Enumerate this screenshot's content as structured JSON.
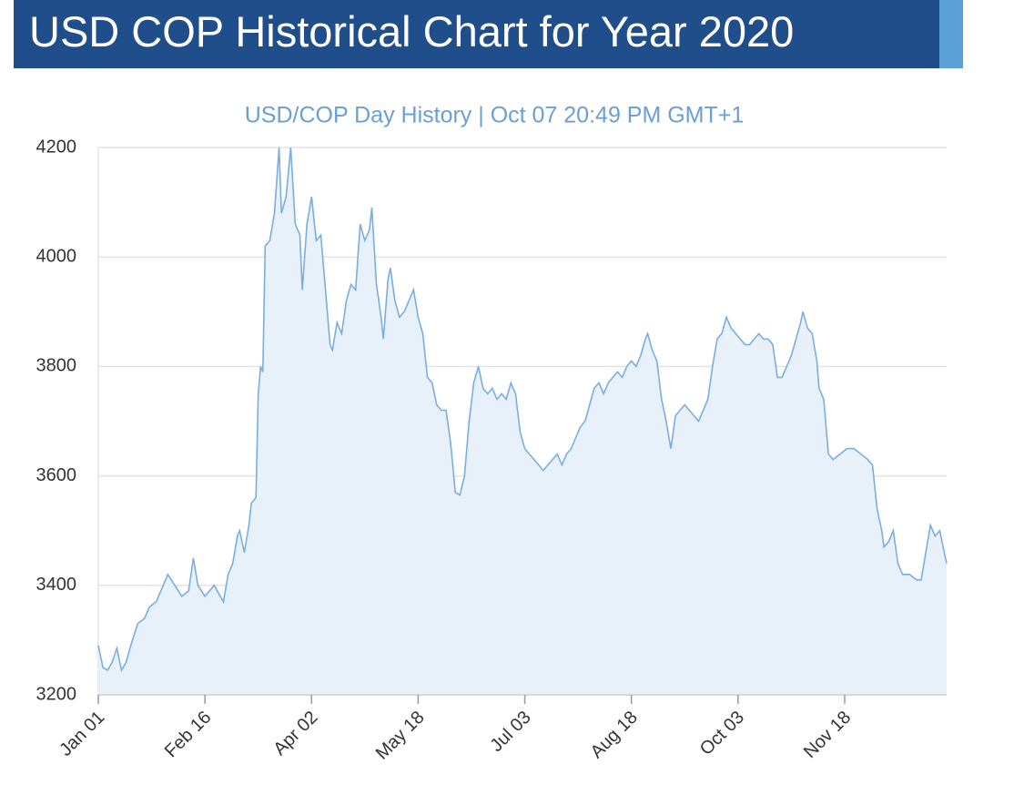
{
  "header": {
    "title": "USD COP Historical Chart for Year 2020"
  },
  "chart_data": {
    "type": "area",
    "title": "USD/COP  Day History | Oct 07 20:49 PM GMT+1",
    "x": [
      0,
      2,
      4,
      6,
      8,
      10,
      12,
      14,
      17,
      20,
      22,
      25,
      28,
      30,
      33,
      36,
      39,
      41,
      43,
      46,
      48,
      50,
      52,
      54,
      56,
      58,
      60,
      61,
      63,
      65,
      66,
      68,
      69,
      70,
      71,
      72,
      74,
      76,
      78,
      79,
      81,
      83,
      85,
      87,
      88,
      90,
      92,
      94,
      96,
      98,
      100,
      101,
      103,
      105,
      107,
      109,
      111,
      113,
      115,
      117,
      118,
      120,
      122,
      123,
      125,
      126,
      128,
      130,
      132,
      134,
      136,
      138,
      140,
      142,
      144,
      146,
      148,
      150,
      152,
      154,
      156,
      158,
      160,
      162,
      164,
      166,
      168,
      170,
      172,
      174,
      176,
      178,
      180,
      182,
      184,
      186,
      188,
      190,
      192,
      194,
      196,
      198,
      200,
      202,
      204,
      206,
      208,
      210,
      212,
      214,
      216,
      218,
      220,
      222,
      224,
      226,
      228,
      230,
      232,
      234,
      236,
      237,
      239,
      241,
      243,
      245,
      247,
      249,
      251,
      253,
      255,
      257,
      259,
      261,
      263,
      265,
      267,
      269,
      271,
      273,
      275,
      277,
      279,
      281,
      283,
      285,
      287,
      289,
      291,
      293,
      295,
      297,
      299,
      301,
      303,
      304,
      306,
      308,
      310,
      311,
      313,
      315,
      317,
      320,
      323,
      326,
      329,
      332,
      334,
      336,
      338,
      339,
      341,
      343,
      345,
      347,
      350,
      353,
      355,
      357,
      359,
      361,
      363,
      366
    ],
    "series": [
      {
        "name": "USD/COP",
        "color": "#7aaee0",
        "fill": "#e8f0f9",
        "values": [
          3290,
          3250,
          3245,
          3260,
          3285,
          3245,
          3260,
          3290,
          3330,
          3340,
          3360,
          3370,
          3400,
          3420,
          3400,
          3380,
          3390,
          3450,
          3400,
          3380,
          3390,
          3400,
          3385,
          3370,
          3420,
          3440,
          3490,
          3500,
          3460,
          3510,
          3550,
          3560,
          3750,
          3800,
          3790,
          4020,
          4030,
          4080,
          4200,
          4080,
          4110,
          4200,
          4060,
          4040,
          3940,
          4060,
          4110,
          4030,
          4040,
          3940,
          3840,
          3830,
          3880,
          3860,
          3920,
          3950,
          3940,
          4060,
          4030,
          4050,
          4090,
          3950,
          3890,
          3850,
          3960,
          3980,
          3920,
          3890,
          3900,
          3920,
          3940,
          3890,
          3860,
          3780,
          3770,
          3730,
          3720,
          3720,
          3660,
          3570,
          3565,
          3600,
          3700,
          3770,
          3800,
          3760,
          3750,
          3760,
          3740,
          3750,
          3740,
          3770,
          3750,
          3680,
          3650,
          3640,
          3630,
          3620,
          3610,
          3620,
          3630,
          3640,
          3620,
          3640,
          3650,
          3670,
          3690,
          3700,
          3730,
          3760,
          3770,
          3750,
          3770,
          3780,
          3790,
          3780,
          3800,
          3810,
          3800,
          3820,
          3850,
          3860,
          3830,
          3810,
          3740,
          3700,
          3650,
          3710,
          3720,
          3730,
          3720,
          3710,
          3700,
          3720,
          3740,
          3800,
          3850,
          3860,
          3890,
          3870,
          3860,
          3850,
          3840,
          3840,
          3850,
          3860,
          3850,
          3850,
          3840,
          3780,
          3780,
          3800,
          3820,
          3850,
          3880,
          3900,
          3870,
          3860,
          3810,
          3760,
          3740,
          3640,
          3630,
          3640,
          3650,
          3650,
          3640,
          3630,
          3620,
          3540,
          3500,
          3470,
          3480,
          3500,
          3440,
          3420,
          3420,
          3410,
          3410,
          3460,
          3510,
          3490,
          3500,
          3440
        ]
      }
    ],
    "xlim": [
      0,
      366
    ],
    "xticks": [
      {
        "value": 0,
        "label": "Jan 01"
      },
      {
        "value": 46,
        "label": "Feb 16"
      },
      {
        "value": 92,
        "label": "Apr 02"
      },
      {
        "value": 138,
        "label": "May 18"
      },
      {
        "value": 184,
        "label": "Jul 03"
      },
      {
        "value": 230,
        "label": "Aug 18"
      },
      {
        "value": 276,
        "label": "Oct 03"
      },
      {
        "value": 322,
        "label": "Nov 18"
      }
    ],
    "ylim": [
      3200,
      4200
    ],
    "yticks": [
      3200,
      3400,
      3600,
      3800,
      4000,
      4200
    ],
    "grid": true
  }
}
